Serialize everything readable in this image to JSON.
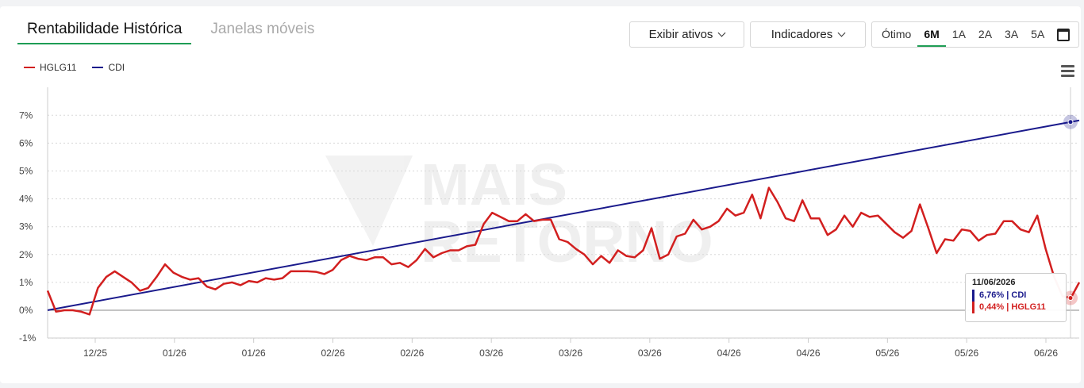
{
  "tabs": {
    "active": "Rentabilidade Histórica",
    "inactive": "Janelas móveis"
  },
  "toolbar": {
    "assets_button": "Exibir ativos",
    "indicators_button": "Indicadores"
  },
  "periods": {
    "items": [
      "Ótimo",
      "6M",
      "1A",
      "2A",
      "3A",
      "5A"
    ],
    "active": "6M"
  },
  "watermark": {
    "line1": "MAIS",
    "line2": "RETORNO"
  },
  "tooltip": {
    "date": "11/06/2026",
    "cdi": "6,76% | CDI",
    "hglg": "0,44% | HGLG11"
  },
  "colors": {
    "hglg": "#d21f1f",
    "cdi": "#1a1a8c",
    "accent": "#1f9d55"
  },
  "chart_data": {
    "type": "line",
    "ylim": [
      -1,
      7
    ],
    "yticks": [
      "7%",
      "6%",
      "5%",
      "4%",
      "3%",
      "2%",
      "1%",
      "0%",
      "-1%"
    ],
    "xticks": [
      "12/25",
      "01/26",
      "01/26",
      "02/26",
      "02/26",
      "03/26",
      "03/26",
      "03/26",
      "04/26",
      "04/26",
      "05/26",
      "05/26",
      "06/26"
    ],
    "grid": true,
    "legend_position": "top-left",
    "series": [
      {
        "name": "HGLG11",
        "color": "#d21f1f",
        "values": [
          0.7,
          -0.05,
          0.0,
          0.0,
          -0.05,
          -0.15,
          0.8,
          1.2,
          1.4,
          1.2,
          1.0,
          0.7,
          0.8,
          1.2,
          1.65,
          1.35,
          1.2,
          1.1,
          1.15,
          0.85,
          0.75,
          0.95,
          1.0,
          0.9,
          1.05,
          1.0,
          1.15,
          1.1,
          1.15,
          1.4,
          1.4,
          1.4,
          1.38,
          1.3,
          1.45,
          1.8,
          1.95,
          1.85,
          1.8,
          1.9,
          1.9,
          1.65,
          1.7,
          1.55,
          1.8,
          2.2,
          1.9,
          2.05,
          2.15,
          2.15,
          2.3,
          2.35,
          3.1,
          3.5,
          3.35,
          3.2,
          3.2,
          3.45,
          3.2,
          3.25,
          3.25,
          2.55,
          2.45,
          2.2,
          2.0,
          1.65,
          1.95,
          1.7,
          2.15,
          1.95,
          1.9,
          2.15,
          2.95,
          1.85,
          2.0,
          2.65,
          2.75,
          3.25,
          2.9,
          3.0,
          3.2,
          3.65,
          3.4,
          3.5,
          4.15,
          3.3,
          4.4,
          3.9,
          3.3,
          3.2,
          3.95,
          3.3,
          3.3,
          2.7,
          2.9,
          3.4,
          3.0,
          3.5,
          3.35,
          3.4,
          3.1,
          2.8,
          2.6,
          2.85,
          3.8,
          2.95,
          2.05,
          2.55,
          2.5,
          2.9,
          2.85,
          2.5,
          2.7,
          2.75,
          3.2,
          3.2,
          2.9,
          2.8,
          3.4,
          2.2,
          1.2,
          0.5,
          0.44,
          1.0
        ]
      },
      {
        "name": "CDI",
        "color": "#1a1a8c",
        "start": 0.0,
        "end": 6.76
      }
    ]
  }
}
